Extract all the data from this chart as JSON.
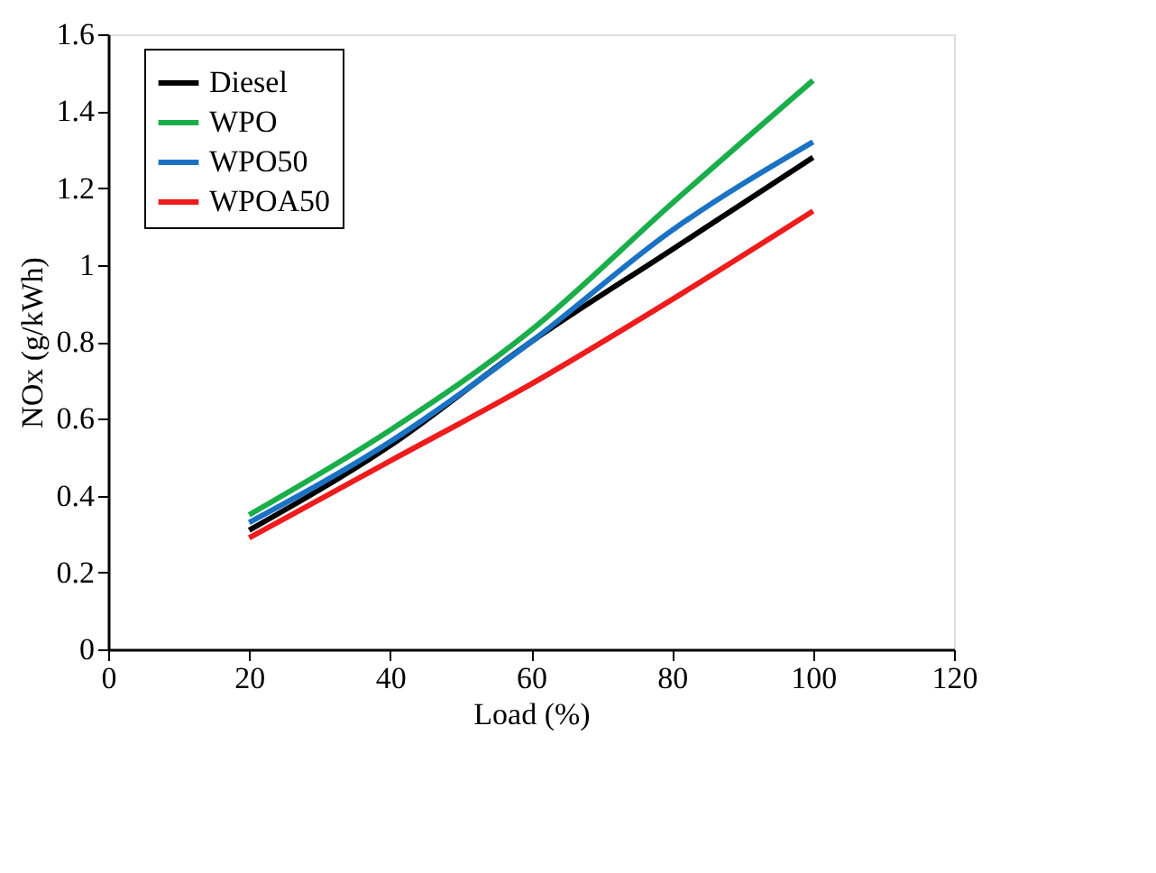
{
  "chart_data": {
    "type": "line",
    "xlabel": "Load (%)",
    "ylabel": "NOx (g/kWh)",
    "x": [
      20,
      40,
      60,
      80,
      100
    ],
    "series": [
      {
        "name": "Diesel",
        "color": "#000000",
        "values": [
          0.31,
          0.53,
          0.8,
          1.04,
          1.28
        ]
      },
      {
        "name": "WPO",
        "color": "#1aae4a",
        "values": [
          0.35,
          0.57,
          0.83,
          1.16,
          1.48
        ]
      },
      {
        "name": "WPO50",
        "color": "#1a72c4",
        "values": [
          0.33,
          0.54,
          0.8,
          1.09,
          1.32
        ]
      },
      {
        "name": "WPOA50",
        "color": "#ee1c1c",
        "values": [
          0.29,
          0.49,
          0.69,
          0.91,
          1.14
        ]
      }
    ],
    "xlim": [
      0,
      120
    ],
    "xticks": [
      0,
      20,
      40,
      60,
      80,
      100,
      120
    ],
    "ylim": [
      0,
      1.6
    ],
    "yticks": [
      0,
      0.2,
      0.4,
      0.6,
      0.8,
      1,
      1.2,
      1.4,
      1.6
    ],
    "grid": false,
    "legend": "top left",
    "marker": "none",
    "line_style": "solid"
  }
}
